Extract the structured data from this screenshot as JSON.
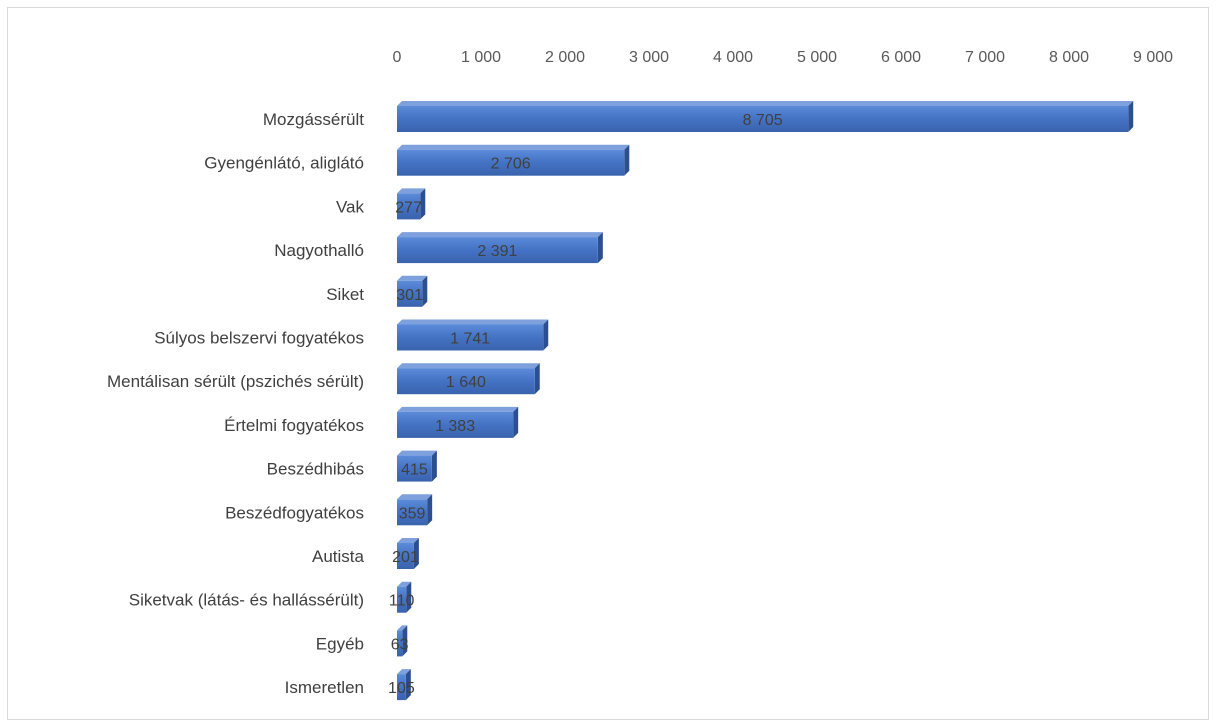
{
  "chart_data": {
    "type": "bar",
    "orientation": "horizontal",
    "style": "3d",
    "title": "",
    "xlabel": "",
    "ylabel": "",
    "xlim": [
      0,
      9000
    ],
    "ticks": [
      0,
      1000,
      2000,
      3000,
      4000,
      5000,
      6000,
      7000,
      8000,
      9000
    ],
    "tick_labels": [
      "0",
      "1 000",
      "2 000",
      "3 000",
      "4 000",
      "5 000",
      "6 000",
      "7 000",
      "8 000",
      "9 000"
    ],
    "axis_position": "top",
    "grid": false,
    "legend": "none",
    "bar_color": "#4472c4",
    "categories": [
      "Mozgássérült",
      "Gyengénlátó, aliglátó",
      "Vak",
      "Nagyothalló",
      "Siket",
      "Súlyos belszervi fogyatékos",
      "Mentálisan sérült (pszichés sérült)",
      "Értelmi fogyatékos",
      "Beszédhibás",
      "Beszédfogyatékos",
      "Autista",
      "Siketvak (látás- és hallássérült)",
      "Egyéb",
      "Ismeretlen"
    ],
    "values": [
      8705,
      2706,
      277,
      2391,
      301,
      1741,
      1640,
      1383,
      415,
      359,
      201,
      110,
      63,
      105
    ],
    "data_labels": [
      "8 705",
      "2 706",
      "277",
      "2 391",
      "301",
      "1 741",
      "1 640",
      "1 383",
      "415",
      "359",
      "201",
      "110",
      "63",
      "105"
    ]
  }
}
